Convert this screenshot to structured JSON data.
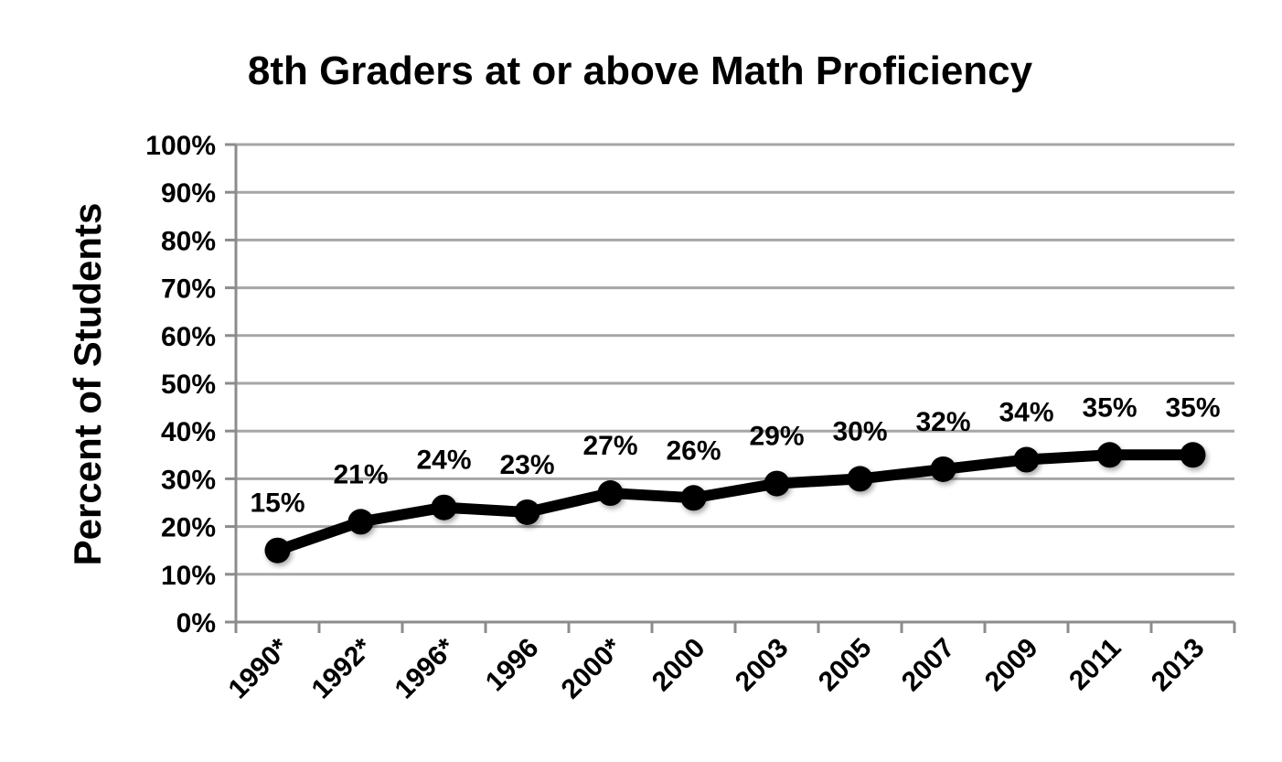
{
  "chart_data": {
    "type": "line",
    "title": "8th Graders at or above Math Proficiency",
    "xlabel": "",
    "ylabel": "Percent of Students",
    "categories": [
      "1990*",
      "1992*",
      "1996*",
      "1996",
      "2000*",
      "2000",
      "2003",
      "2005",
      "2007",
      "2009",
      "2011",
      "2013"
    ],
    "series": [
      {
        "values": [
          15,
          21,
          24,
          23,
          27,
          26,
          29,
          30,
          32,
          34,
          35,
          35
        ],
        "data_labels": [
          "15%",
          "21%",
          "24%",
          "23%",
          "27%",
          "26%",
          "29%",
          "30%",
          "32%",
          "34%",
          "35%",
          "35%"
        ],
        "color": "#000000"
      }
    ],
    "ylim": [
      0,
      100
    ],
    "y_ticks": [
      0,
      10,
      20,
      30,
      40,
      50,
      60,
      70,
      80,
      90,
      100
    ],
    "y_tick_labels": [
      "0%",
      "10%",
      "20%",
      "30%",
      "40%",
      "50%",
      "60%",
      "70%",
      "80%",
      "90%",
      "100%"
    ],
    "grid": true,
    "legend": "none",
    "colors": {
      "line": "#000000",
      "marker": "#000000",
      "grid": "#a6a6a6",
      "axis": "#8c8c8c"
    }
  }
}
